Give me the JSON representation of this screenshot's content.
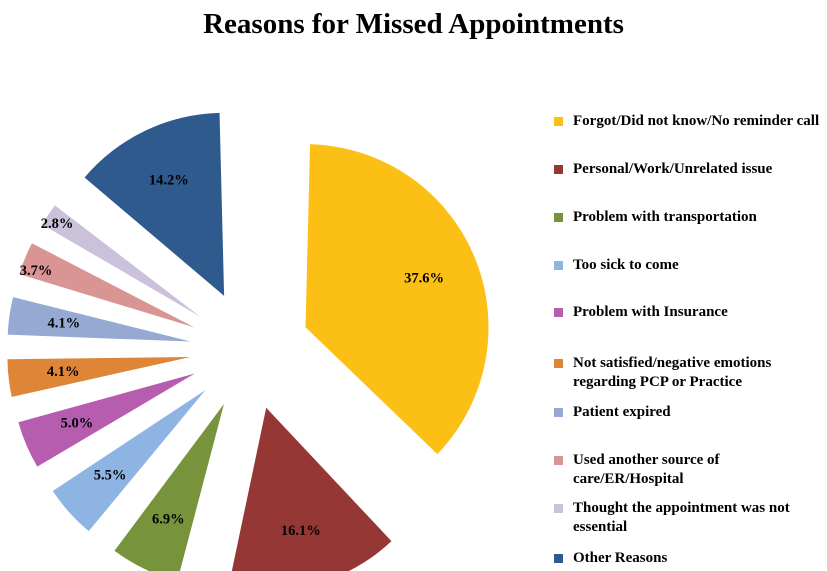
{
  "chart_data": {
    "type": "pie",
    "title": "Reasons for Missed Appointments",
    "exploded": true,
    "legend_position": "right",
    "slices": [
      {
        "label": "Forgot/Did not know/No reminder call",
        "value": 37.6,
        "display": "37.6%",
        "color": "#FBBF16"
      },
      {
        "label": "Personal/Work/Unrelated issue",
        "value": 16.1,
        "display": "16.1%",
        "color": "#953735"
      },
      {
        "label": "Problem with transportation",
        "value": 6.9,
        "display": "6.9%",
        "color": "#77933C"
      },
      {
        "label": "Too sick to come",
        "value": 5.5,
        "display": "5.5%",
        "color": "#8EB4E3"
      },
      {
        "label": "Problem with Insurance",
        "value": 5.0,
        "display": "5.0%",
        "color": "#B65DAF"
      },
      {
        "label": "Not satisfied/negative emotions regarding PCP or Practice",
        "value": 4.1,
        "display": "4.1%",
        "color": "#DE8537"
      },
      {
        "label": "Patient expired",
        "value": 4.1,
        "display": "4.1%",
        "color": "#95A9D2"
      },
      {
        "label": "Used another source of care/ER/Hospital",
        "value": 3.7,
        "display": "3.7%",
        "color": "#D99594"
      },
      {
        "label": "Thought the appointment was not essential",
        "value": 2.8,
        "display": "2.8%",
        "color": "#CCC1DA"
      },
      {
        "label": "Other Reasons",
        "value": 14.2,
        "display": "14.2%",
        "color": "#2F5A8E"
      }
    ]
  }
}
